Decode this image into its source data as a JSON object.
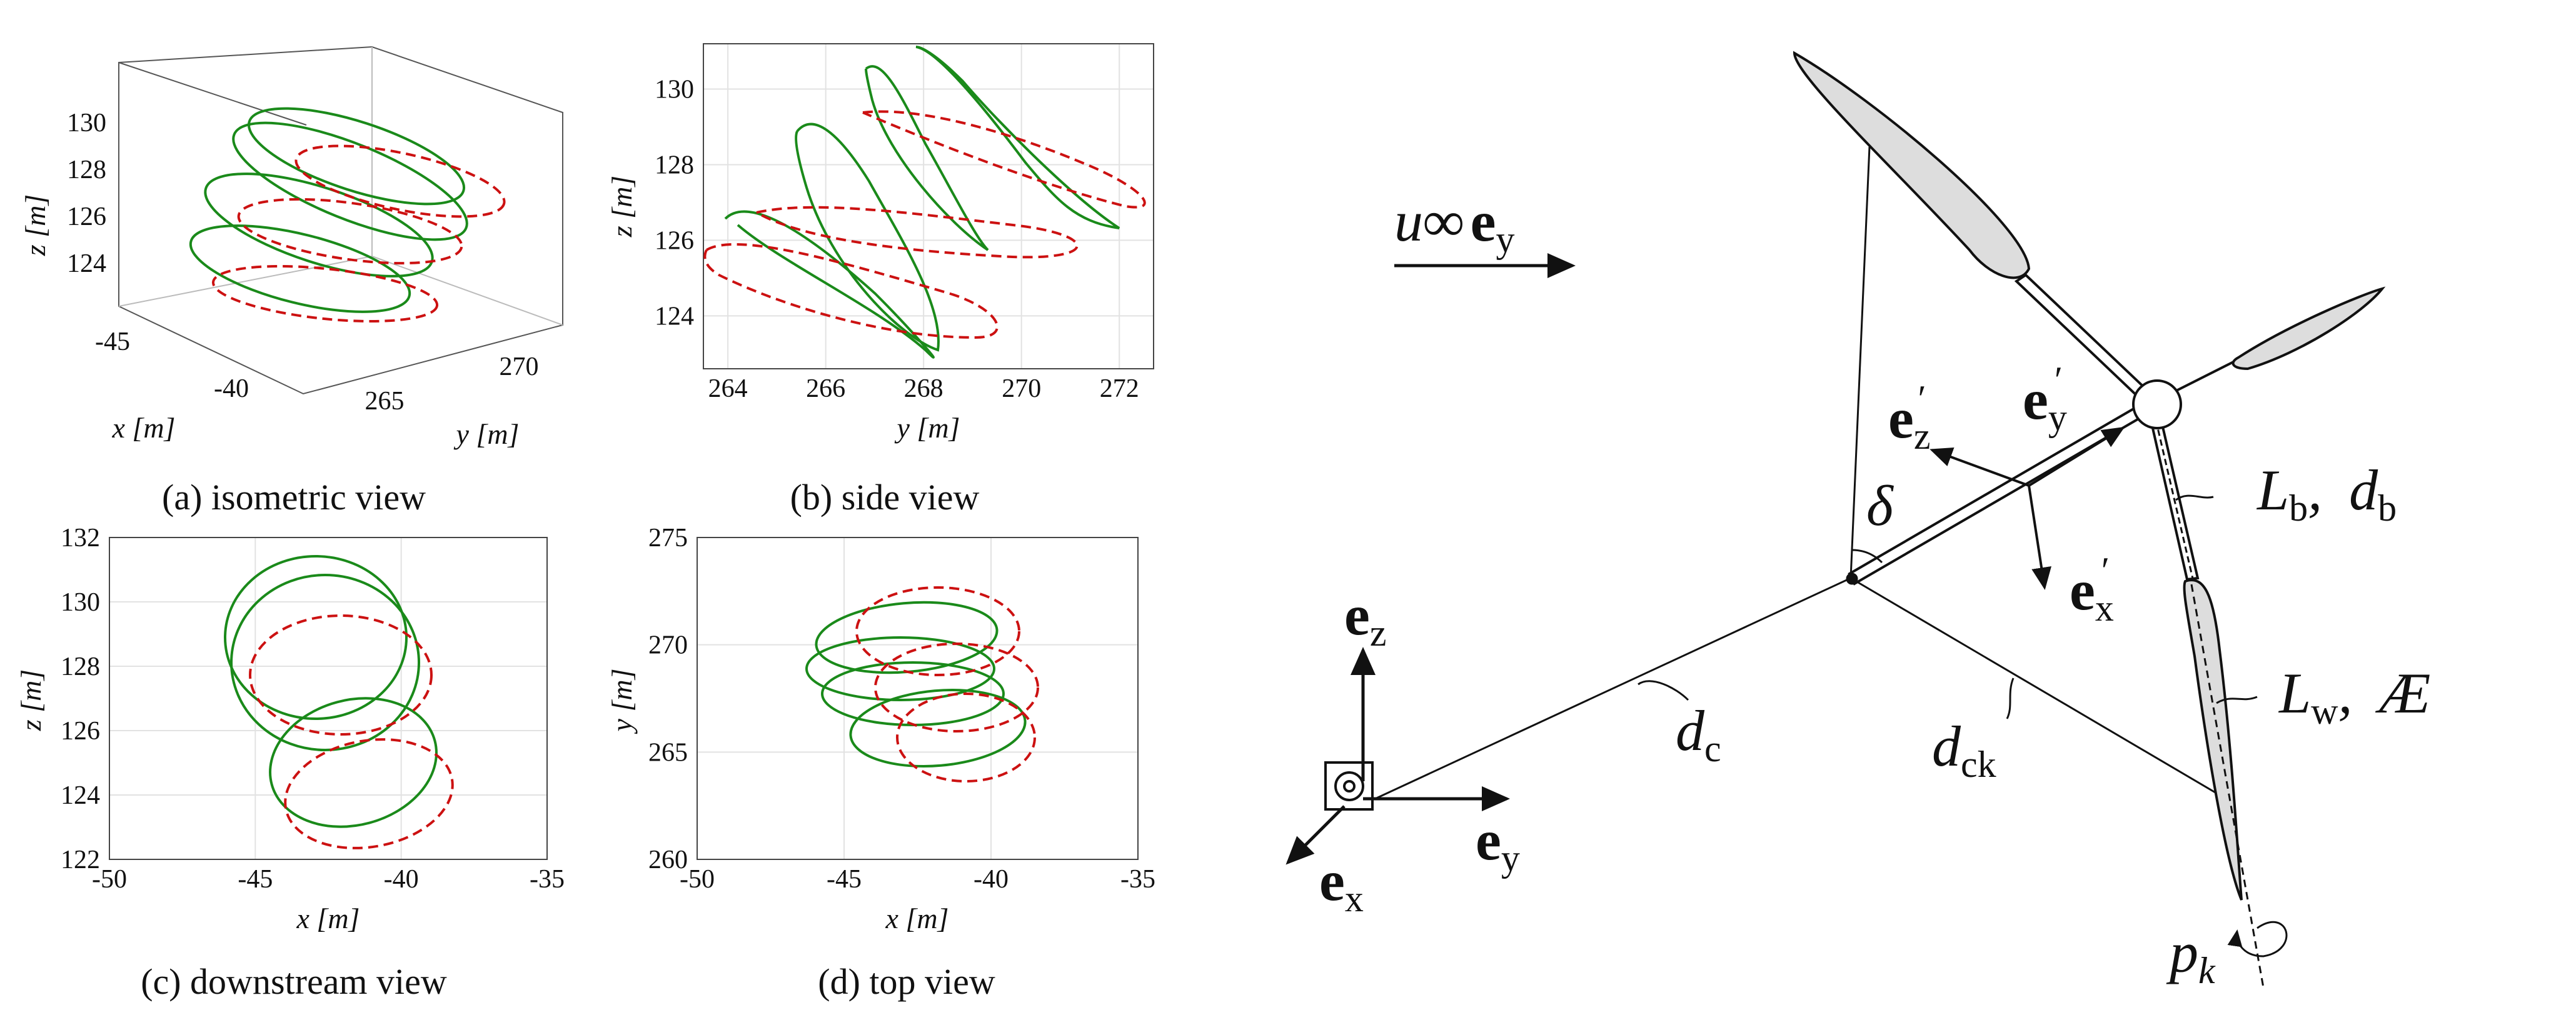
{
  "colors": {
    "green": "#1a8a1a",
    "red": "#cc1111",
    "axis": "#444444",
    "grid": "#e2e2e2"
  },
  "captions": {
    "a": "(a) isometric view",
    "b": "(b) side view",
    "c": "(c) downstream view",
    "d": "(d) top view"
  },
  "panel_a": {
    "z_ticks": [
      "130",
      "128",
      "126",
      "124"
    ],
    "x_ticks": [
      "-45",
      "-40"
    ],
    "y_ticks": [
      "265",
      "270"
    ],
    "z_label": "z [m]",
    "x_label": "x [m]",
    "y_label": "y [m]"
  },
  "chart_data": [
    {
      "type": "line",
      "panel": "b",
      "xlabel": "y [m]",
      "ylabel": "z [m]",
      "xlim": [
        263.5,
        272.7
      ],
      "ylim": [
        122.6,
        131.2
      ],
      "x_ticks": [
        "264",
        "266",
        "268",
        "270",
        "272"
      ],
      "y_ticks": [
        "124",
        "126",
        "128",
        "130"
      ],
      "grid": true
    },
    {
      "type": "line",
      "panel": "c",
      "xlabel": "x [m]",
      "ylabel": "z [m]",
      "xlim": [
        -50,
        -35
      ],
      "ylim": [
        122,
        132
      ],
      "x_ticks": [
        "-50",
        "-45",
        "-40",
        "-35"
      ],
      "y_ticks": [
        "122",
        "124",
        "126",
        "128",
        "130",
        "132"
      ],
      "grid": true
    },
    {
      "type": "line",
      "panel": "d",
      "xlabel": "x [m]",
      "ylabel": "y [m]",
      "xlim": [
        -50,
        -35
      ],
      "ylim": [
        260,
        275
      ],
      "x_ticks": [
        "-50",
        "-45",
        "-40",
        "-35"
      ],
      "y_ticks": [
        "260",
        "265",
        "270",
        "275"
      ],
      "grid": true
    }
  ],
  "diagram": {
    "wind_label": "u∞",
    "wind_vec": "e",
    "wind_sub": "y",
    "ex": "e",
    "ex_sub": "x",
    "ey": "e",
    "ey_sub": "y",
    "ez": "e",
    "ez_sub": "z",
    "exp": "e",
    "exp_sub": "x",
    "exp_prime": "′",
    "eyp": "e",
    "eyp_sub": "y",
    "eyp_prime": "′",
    "ezp": "e",
    "ezp_sub": "z",
    "ezp_prime": "′",
    "delta": "δ",
    "Lb": "L",
    "Lb_sub": "b",
    "db": "d",
    "db_sub": "b",
    "Lw": "L",
    "Lw_sub": "w",
    "AR": "Æ",
    "dc": "d",
    "dc_sub": "c",
    "dck": "d",
    "dck_sub": "ck",
    "pk": "p",
    "pk_sub": "k"
  }
}
